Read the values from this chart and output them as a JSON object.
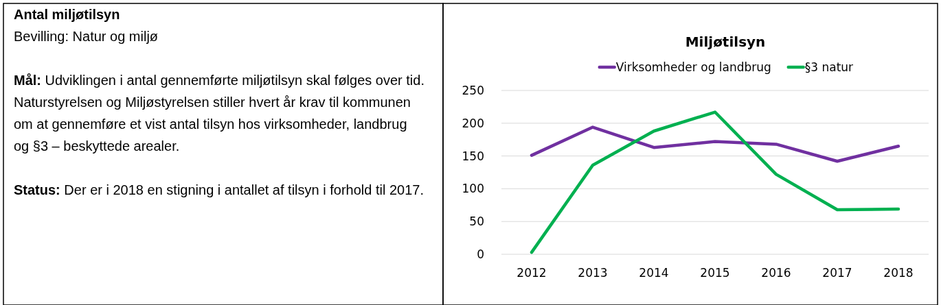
{
  "chart_data": [
    {
      "type": "other",
      "title": "Antal miljøtilsyn",
      "subtitle": "Bevilling: Natur og miljø",
      "annotations": [
        "Mål: Udviklingen i antal gennemførte miljøtilsyn skal følges over tid.",
        "Naturstyrelsen og Miljøstyrelsen stiller hvert år krav til kommunen om at gennemføre et vist antal tilsyn hos virksomheder, landbrug og §3 – beskyttede arealer.",
        "Status: Der er i 2018 en stigning i antallet af tilsyn i forhold til 2017."
      ]
    },
    {
      "type": "line",
      "title": "Miljøtilsyn",
      "categories": [
        "2012",
        "2013",
        "2014",
        "2015",
        "2016",
        "2017",
        "2018"
      ],
      "series": [
        {
          "name": "Virksomheder og landbrug",
          "color": "#7030a0",
          "values": [
            151,
            194,
            163,
            172,
            168,
            142,
            165
          ]
        },
        {
          "name": "§3 natur",
          "color": "#00b050",
          "values": [
            3,
            136,
            188,
            217,
            122,
            68,
            69
          ]
        }
      ],
      "ylim": [
        0,
        250
      ],
      "yticks": [
        0,
        50,
        100,
        150,
        200,
        250
      ],
      "grid": "y",
      "legend": "top",
      "marker": "none",
      "line_style": "solid"
    }
  ]
}
